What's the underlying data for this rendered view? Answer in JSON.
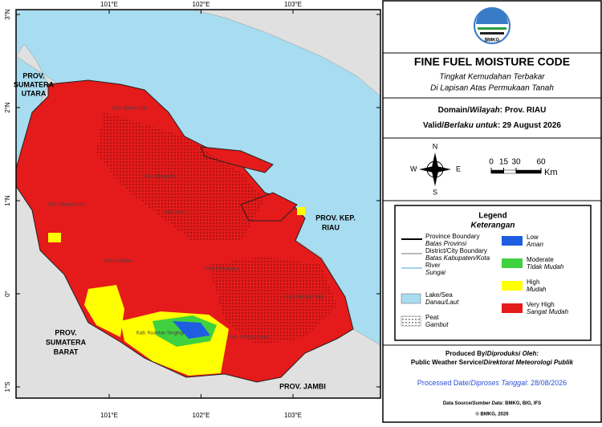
{
  "map": {
    "lon_ticks": [
      {
        "value": 101,
        "label": "101°E"
      },
      {
        "value": 102,
        "label": "102°E"
      },
      {
        "value": 103,
        "label": "103°E"
      }
    ],
    "lat_ticks": [
      {
        "value": 3,
        "label": "3°N"
      },
      {
        "value": 2,
        "label": "2°N"
      },
      {
        "value": 1,
        "label": "1°N"
      },
      {
        "value": 0,
        "label": "0°"
      },
      {
        "value": -1,
        "label": "1°S"
      }
    ],
    "regions": [
      "PROV.",
      "SUMATERA",
      "UTARA",
      "PROV.",
      "SUMATERA",
      "BARAT",
      "PROV. JAMBI",
      "PROV. KEP.",
      "RIAU"
    ],
    "districts": [
      "Kab. Rokan Hulu",
      "Kab. Kampar",
      "Kab. Kuantan Singingi",
      "Kab. Indragiri Hulu",
      "Kab. Pelalawan",
      "Kab. Siak",
      "Kab. Bengkalis",
      "Kab. Indragiri Hilir",
      "Kab. Rokan Hilir"
    ]
  },
  "header": {
    "logo": "BMKG",
    "title": "FINE FUEL MOISTURE CODE",
    "subtitle1": "Tingkat Kemudahan Terbakar",
    "subtitle2": "Di Lapisan Atas Permukaan Tanah"
  },
  "domain": {
    "label_en": "Domain/",
    "label_id": "Wilayah",
    "value": ": Prov. RIAU"
  },
  "valid": {
    "label_en": "Valid/",
    "label_id": "Berlaku untuk",
    "value": ": 29 August 2026"
  },
  "compass": {
    "n": "N",
    "e": "E",
    "s": "S",
    "w": "W"
  },
  "scale_bar": {
    "ticks": [
      0,
      15,
      30,
      60
    ],
    "unit": "Km"
  },
  "legend": {
    "title": "Legend",
    "title_local": "Keterangan",
    "lines": [
      {
        "name": "Province Boundary",
        "name_local": "Batas Provinsi",
        "color": "#000000"
      },
      {
        "name": "District/City Boundary",
        "name_local": "Batas Kabupaten/Kota",
        "color": "#777777"
      },
      {
        "name": "River",
        "name_local": "Sungai",
        "color": "#4aa3df"
      }
    ],
    "areas": [
      {
        "name": "Lake/Sea",
        "name_local": "Danau/Laut",
        "color": "#a8dcf0"
      },
      {
        "name": "Peat",
        "name_local": "Gambut",
        "color": "#ffffff",
        "pattern": "dots"
      }
    ],
    "classes": [
      {
        "name": "Low",
        "name_local": "Aman",
        "color": "#1f5ee0"
      },
      {
        "name": "Moderate",
        "name_local": "Tidak Mudah",
        "color": "#3fd13f"
      },
      {
        "name": "High",
        "name_local": "Mudah",
        "color": "#ffff00"
      },
      {
        "name": "Very High",
        "name_local": "Sangat Mudah",
        "color": "#e51a1a"
      }
    ]
  },
  "footer": {
    "produced_en": "Produced By/",
    "produced_id": "Diproduksi Oleh:",
    "org_en": "Public Weather Service/",
    "org_id": "Direktorat Meteorologi Publik",
    "processed_en": "Processed Date/",
    "processed_id": "Diproses Tanggal",
    "processed_value": ": 28/08/2026",
    "source_en": "Data Source/",
    "source_id": "Sumber Data",
    "source_value": ": BMKG, BIG, IFS",
    "copyright": "© BMKG, 2026"
  }
}
